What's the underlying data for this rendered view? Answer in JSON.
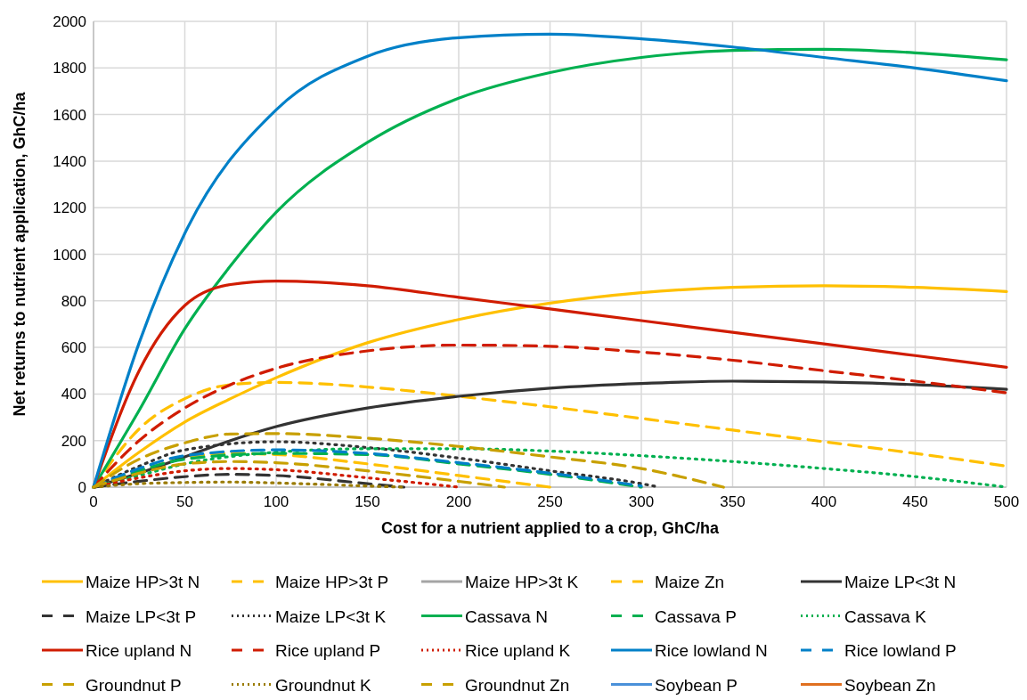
{
  "chart_data": {
    "type": "line",
    "xlabel": "Cost for a nutrient applied to a crop, GhC/ha",
    "ylabel": "Net returns to nutrient application, GhC/ha",
    "xlim": [
      0,
      500
    ],
    "ylim": [
      0,
      2000
    ],
    "xticks": [
      0,
      50,
      100,
      150,
      200,
      250,
      300,
      350,
      400,
      450,
      500
    ],
    "yticks": [
      0,
      200,
      400,
      600,
      800,
      1000,
      1200,
      1400,
      1600,
      1800,
      2000
    ],
    "grid": true,
    "legend": "bottom",
    "marker": "none",
    "series": [
      {
        "name": "Maize HP>3t N",
        "color": "#ffc000",
        "line_style": "solid",
        "x": [
          0,
          25,
          50,
          75,
          100,
          150,
          200,
          250,
          300,
          350,
          400,
          450,
          500
        ],
        "values": [
          0,
          150,
          280,
          380,
          470,
          620,
          720,
          790,
          835,
          858,
          865,
          858,
          840
        ]
      },
      {
        "name": "Maize HP>3t P",
        "color": "#ffc000",
        "line_style": "dashed",
        "x": [
          0,
          25,
          50,
          75,
          100,
          150,
          200,
          250
        ],
        "values": [
          0,
          70,
          125,
          145,
          140,
          100,
          50,
          0
        ]
      },
      {
        "name": "Maize HP>3t K",
        "color": "#a5a5a5",
        "line_style": "solid"
      },
      {
        "name": "Maize Zn",
        "color": "#ffc000",
        "line_style": "dashed",
        "x": [
          0,
          25,
          50,
          75,
          100,
          150,
          200,
          250,
          300,
          350,
          400,
          450,
          500
        ],
        "values": [
          0,
          250,
          380,
          440,
          450,
          430,
          390,
          345,
          295,
          245,
          195,
          145,
          90
        ]
      },
      {
        "name": "Maize LP<3t N",
        "color": "#333333",
        "line_style": "solid",
        "x": [
          0,
          25,
          50,
          75,
          100,
          150,
          200,
          250,
          300,
          350,
          400,
          450,
          500
        ],
        "values": [
          0,
          60,
          130,
          200,
          260,
          340,
          390,
          425,
          445,
          455,
          452,
          440,
          420
        ]
      },
      {
        "name": "Maize LP<3t P",
        "color": "#333333",
        "line_style": "dashed",
        "x": [
          0,
          25,
          50,
          75,
          100,
          150,
          170
        ],
        "values": [
          0,
          25,
          45,
          55,
          50,
          15,
          0
        ]
      },
      {
        "name": "Maize LP<3t K",
        "color": "#333333",
        "line_style": "dotted",
        "x": [
          0,
          25,
          50,
          100,
          150,
          200,
          250,
          300,
          310
        ],
        "values": [
          0,
          90,
          160,
          195,
          170,
          125,
          70,
          15,
          0
        ]
      },
      {
        "name": "Cassava N",
        "color": "#00b050",
        "line_style": "solid",
        "x": [
          0,
          25,
          50,
          75,
          100,
          150,
          200,
          250,
          300,
          350,
          400,
          450,
          500
        ],
        "values": [
          0,
          330,
          680,
          950,
          1180,
          1480,
          1670,
          1780,
          1845,
          1875,
          1880,
          1865,
          1835
        ]
      },
      {
        "name": "Cassava P",
        "color": "#00b050",
        "line_style": "dashed",
        "x": [
          0,
          25,
          50,
          100,
          150,
          200,
          250,
          300
        ],
        "values": [
          0,
          70,
          120,
          145,
          140,
          100,
          55,
          0
        ]
      },
      {
        "name": "Cassava K",
        "color": "#00b050",
        "line_style": "dotted",
        "x": [
          0,
          25,
          50,
          100,
          150,
          200,
          250,
          300,
          350,
          400,
          450,
          500
        ],
        "values": [
          0,
          50,
          100,
          150,
          165,
          165,
          155,
          135,
          110,
          80,
          45,
          0
        ]
      },
      {
        "name": "Rice upland N",
        "color": "#d01c00",
        "line_style": "solid",
        "x": [
          0,
          25,
          50,
          75,
          100,
          150,
          200,
          250,
          300,
          350,
          400,
          450,
          500
        ],
        "values": [
          0,
          500,
          780,
          870,
          885,
          865,
          815,
          765,
          715,
          665,
          615,
          565,
          515
        ]
      },
      {
        "name": "Rice upland P",
        "color": "#d01c00",
        "line_style": "dashed",
        "x": [
          0,
          25,
          50,
          75,
          100,
          150,
          200,
          250,
          300,
          350,
          400,
          450,
          500
        ],
        "values": [
          0,
          200,
          340,
          440,
          510,
          585,
          610,
          605,
          580,
          545,
          500,
          455,
          405
        ]
      },
      {
        "name": "Rice upland K",
        "color": "#d01c00",
        "line_style": "dotted",
        "x": [
          0,
          25,
          50,
          75,
          100,
          150,
          200
        ],
        "values": [
          0,
          40,
          70,
          80,
          75,
          40,
          0
        ]
      },
      {
        "name": "Rice lowland N",
        "color": "#0080c8",
        "line_style": "solid",
        "x": [
          0,
          25,
          50,
          100,
          150,
          200,
          250,
          300,
          350,
          400,
          450,
          500
        ],
        "values": [
          0,
          620,
          1090,
          1620,
          1850,
          1930,
          1945,
          1925,
          1890,
          1845,
          1800,
          1745
        ]
      },
      {
        "name": "Rice lowland P",
        "color": "#0080c8",
        "line_style": "dashed",
        "x": [
          0,
          25,
          50,
          100,
          150,
          200,
          250,
          300
        ],
        "values": [
          0,
          80,
          135,
          160,
          145,
          105,
          60,
          5
        ]
      },
      {
        "name": "Groundnut P",
        "color": "#c8a000",
        "line_style": "dashed",
        "x": [
          0,
          25,
          50,
          75,
          100,
          150,
          200,
          225
        ],
        "values": [
          0,
          60,
          100,
          110,
          105,
          70,
          25,
          0
        ]
      },
      {
        "name": "Groundnut K",
        "color": "#9a7b00",
        "line_style": "dotted",
        "x": [
          0,
          25,
          50,
          75,
          100,
          150,
          170
        ],
        "values": [
          0,
          15,
          20,
          22,
          18,
          5,
          0
        ]
      },
      {
        "name": "Groundnut Zn",
        "color": "#c8a000",
        "line_style": "dashed",
        "x": [
          0,
          25,
          50,
          75,
          100,
          150,
          200,
          250,
          300,
          345
        ],
        "values": [
          0,
          120,
          190,
          228,
          230,
          210,
          175,
          130,
          80,
          0
        ]
      },
      {
        "name": "Soybean P",
        "color": "#4a90d9",
        "line_style": "solid"
      },
      {
        "name": "Soybean Zn",
        "color": "#e07020",
        "line_style": "solid"
      }
    ]
  }
}
